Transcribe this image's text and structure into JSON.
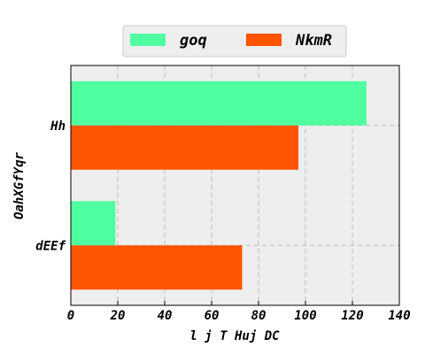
{
  "chart_data": {
    "type": "barh",
    "categories": [
      "Hh",
      "dEEf"
    ],
    "series": [
      {
        "name": "goq",
        "color": "#50ffa0",
        "values": [
          126,
          19
        ]
      },
      {
        "name": "NkmR",
        "color": "#ff5500",
        "values": [
          97,
          73
        ]
      }
    ],
    "xlabel": "l j T Huj DC",
    "ylabel": "OahXGfYqr",
    "xlim": [
      0,
      140
    ],
    "xticks": [
      0,
      20,
      40,
      60,
      80,
      100,
      120,
      140
    ],
    "grid": true,
    "legend": "upper center"
  }
}
